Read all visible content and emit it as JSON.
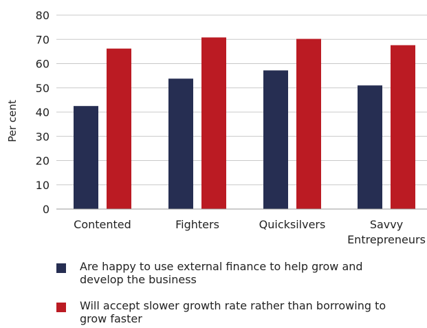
{
  "chart_data": {
    "type": "bar",
    "ylabel": "Per cent",
    "ylim": [
      0,
      80
    ],
    "yticks": [
      "0",
      "10",
      "20",
      "30",
      "40",
      "50",
      "60",
      "70",
      "80"
    ],
    "grid": true,
    "categories": [
      "Contented",
      "Fighters",
      "Quicksilvers",
      "Savvy\nEntrepreneurs"
    ],
    "series": [
      {
        "name": "Are happy to use external finance to help grow and develop the business",
        "color": "#262e52",
        "values": [
          42.5,
          53.8,
          57.2,
          51.0
        ]
      },
      {
        "name": "Will accept slower growth rate rather than borrowing to grow faster",
        "color": "#bb1b23",
        "values": [
          66.2,
          70.8,
          70.2,
          67.6
        ]
      }
    ],
    "legend_position": "bottom"
  }
}
